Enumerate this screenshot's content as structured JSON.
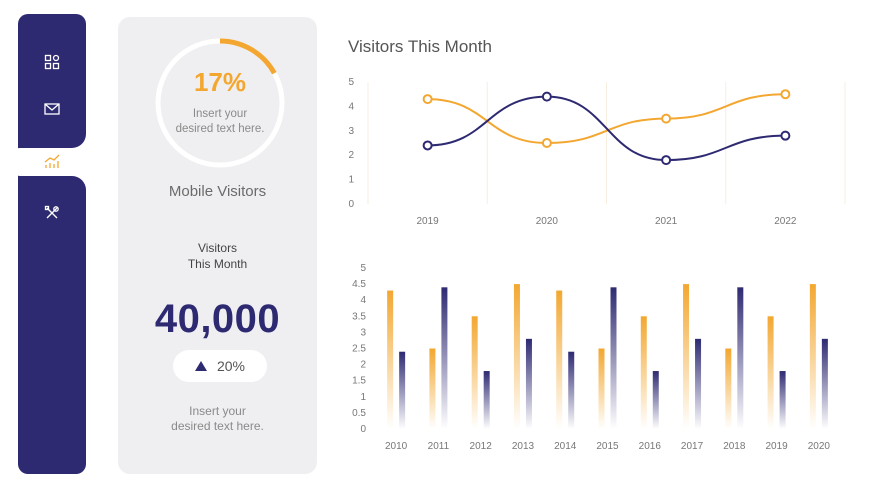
{
  "sidebar": {
    "items": [
      {
        "icon": "dashboard-icon",
        "active": false
      },
      {
        "icon": "mail-icon",
        "active": false
      },
      {
        "icon": "chart-icon",
        "active": true
      },
      {
        "icon": "tools-icon",
        "active": false
      }
    ]
  },
  "panel": {
    "percent": "17%",
    "percent_value": 17,
    "ring_text": "Insert your desired text here.",
    "mobile_label": "Mobile Visitors",
    "visitors_label_line1": "Visitors",
    "visitors_label_line2": "This Month",
    "big_number": "40,000",
    "change": "20%",
    "bottom_text_line1": "Insert your",
    "bottom_text_line2": "desired text here."
  },
  "colors": {
    "navy": "#2e2a72",
    "orange": "#f3a730",
    "panel_bg": "#efeff1"
  },
  "chart_data": [
    {
      "type": "line",
      "title": "Visitors This Month",
      "x": [
        "2019",
        "2020",
        "2021",
        "2022"
      ],
      "ylim": [
        0,
        5
      ],
      "yticks": [
        0,
        1,
        2,
        3,
        4,
        5
      ],
      "series": [
        {
          "color": "#f3a730",
          "values": [
            4.3,
            2.5,
            3.5,
            4.5
          ]
        },
        {
          "color": "#2e2a72",
          "values": [
            2.4,
            4.4,
            1.8,
            2.8
          ]
        }
      ]
    },
    {
      "type": "bar",
      "categories": [
        "2010",
        "2011",
        "2012",
        "2013",
        "2014",
        "2015",
        "2016",
        "2017",
        "2018",
        "2019",
        "2020"
      ],
      "ylim": [
        0,
        5
      ],
      "yticks": [
        "0",
        "0.5",
        "1",
        "1.5",
        "2",
        "2.5",
        "3",
        "3.5",
        "4",
        "4.5",
        "5"
      ],
      "series": [
        {
          "color": "#f3a730",
          "values": [
            4.3,
            2.5,
            3.5,
            4.5,
            4.3,
            2.5,
            3.5,
            4.5,
            2.5,
            3.5,
            4.5
          ]
        },
        {
          "color": "#2e2a72",
          "values": [
            2.4,
            4.4,
            1.8,
            2.8,
            2.4,
            4.4,
            1.8,
            2.8,
            4.4,
            1.8,
            2.8
          ]
        }
      ]
    }
  ]
}
